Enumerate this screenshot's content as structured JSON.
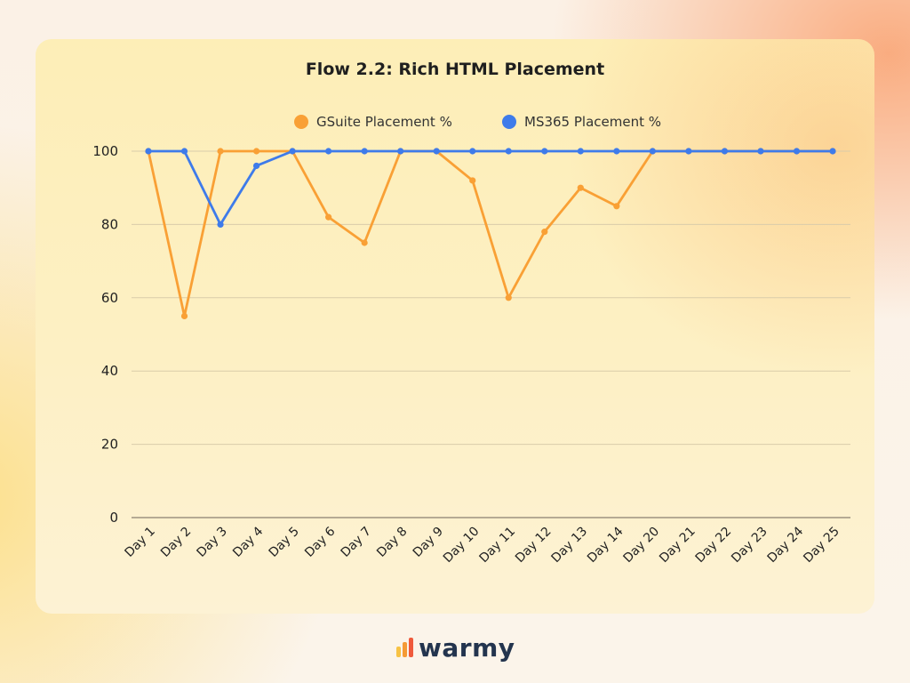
{
  "chart_data": {
    "type": "line",
    "title": "Flow 2.2: Rich HTML Placement",
    "xlabel": "",
    "ylabel": "",
    "categories": [
      "Day 1",
      "Day 2",
      "Day 3",
      "Day 4",
      "Day 5",
      "Day 6",
      "Day 7",
      "Day 8",
      "Day 9",
      "Day 10",
      "Day 11",
      "Day 12",
      "Day 13",
      "Day 14",
      "Day 20",
      "Day 21",
      "Day 22",
      "Day 23",
      "Day 24",
      "Day 25"
    ],
    "series": [
      {
        "name": "GSuite Placement %",
        "color": "#f9a035",
        "values": [
          100,
          55,
          100,
          100,
          100,
          82,
          75,
          100,
          100,
          92,
          60,
          78,
          90,
          85,
          100,
          100,
          100,
          100,
          100,
          100
        ]
      },
      {
        "name": "MS365 Placement %",
        "color": "#3e7bea",
        "values": [
          100,
          100,
          80,
          96,
          100,
          100,
          100,
          100,
          100,
          100,
          100,
          100,
          100,
          100,
          100,
          100,
          100,
          100,
          100,
          100
        ]
      }
    ],
    "yticks": [
      "0",
      "20",
      "40",
      "60",
      "80",
      "100"
    ],
    "ylim": [
      0,
      100
    ],
    "grid": true,
    "legend_position": "top-center"
  },
  "brand": {
    "name": "warmy",
    "text_color": "#23344e",
    "mark_colors": [
      "#f7c244",
      "#f59a35",
      "#ef5a3c"
    ]
  }
}
